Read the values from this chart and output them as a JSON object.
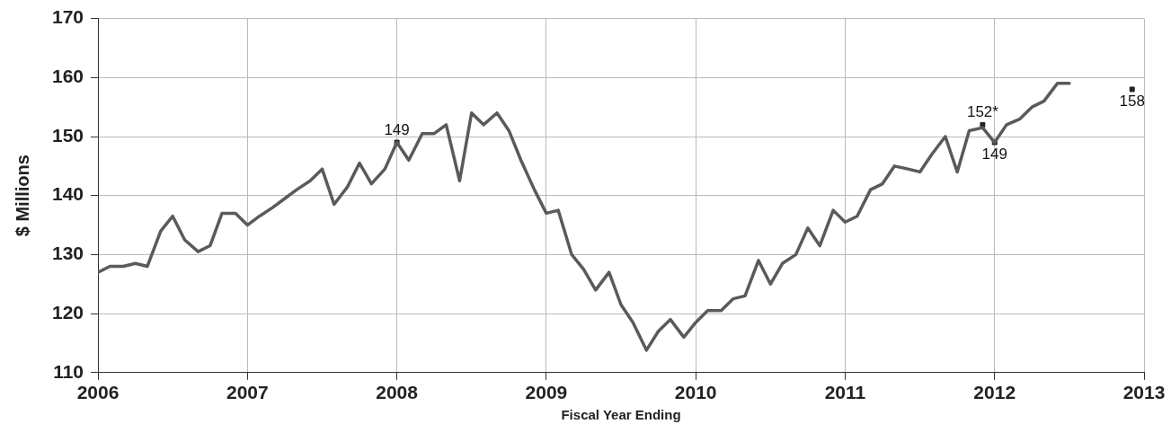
{
  "chart_data": {
    "type": "line",
    "xlabel": "Fiscal Year Ending",
    "ylabel": "$ Millions",
    "xlim": [
      2006,
      2013
    ],
    "xticks": [
      2006,
      2007,
      2008,
      2009,
      2010,
      2011,
      2012,
      2013
    ],
    "ylim": [
      110,
      170
    ],
    "yticks": [
      110,
      120,
      130,
      140,
      150,
      160,
      170
    ],
    "grid": true,
    "line_style": "solid",
    "series": [
      {
        "color": "#5a5a5a",
        "marker": "none",
        "x": [
          2006,
          2006.08,
          2006.17,
          2006.25,
          2006.33,
          2006.42,
          2006.5,
          2006.58,
          2006.67,
          2006.75,
          2006.83,
          2006.92,
          2007,
          2007.08,
          2007.17,
          2007.25,
          2007.33,
          2007.42,
          2007.5,
          2007.58,
          2007.67,
          2007.75,
          2007.83,
          2007.92,
          2008,
          2008.08,
          2008.17,
          2008.25,
          2008.33,
          2008.42,
          2008.5,
          2008.58,
          2008.67,
          2008.75,
          2008.83,
          2008.92,
          2009,
          2009.08,
          2009.17,
          2009.25,
          2009.33,
          2009.42,
          2009.5,
          2009.58,
          2009.67,
          2009.75,
          2009.83,
          2009.92,
          2010,
          2010.08,
          2010.17,
          2010.25,
          2010.33,
          2010.42,
          2010.5,
          2010.58,
          2010.67,
          2010.75,
          2010.83,
          2010.92,
          2011,
          2011.08,
          2011.17,
          2011.25,
          2011.33,
          2011.42,
          2011.5,
          2011.58,
          2011.67,
          2011.75,
          2011.83,
          2011.92,
          2012,
          2012.08,
          2012.17,
          2012.25,
          2012.33,
          2012.42,
          2012.5
        ],
        "values": [
          127,
          128,
          128,
          128.5,
          128,
          134,
          136.5,
          132.5,
          130.5,
          131.5,
          137,
          137,
          135,
          136.5,
          138,
          139.5,
          141,
          142.5,
          144.5,
          138.5,
          141.5,
          145.5,
          142,
          144.5,
          149,
          146,
          150.5,
          150.5,
          152,
          142.5,
          154,
          152,
          154,
          151,
          146,
          141,
          137,
          137.5,
          130,
          127.5,
          124,
          127,
          121.5,
          118.5,
          113.8,
          117,
          119,
          116,
          118.5,
          120.5,
          120.5,
          122.5,
          123,
          129,
          125,
          128.5,
          130,
          134.5,
          131.5,
          137.5,
          135.5,
          136.5,
          141,
          142,
          145,
          144.5,
          144,
          147,
          150,
          144,
          151,
          151.5,
          149,
          152,
          153,
          155,
          156,
          159,
          159
        ]
      },
      {
        "type": "scatter",
        "color": "#222222",
        "marker": "square",
        "x": [
          2008,
          2011.92,
          2012,
          2012.92
        ],
        "values": [
          149,
          152,
          149,
          158
        ],
        "value_labels": [
          "149",
          "152*",
          "149",
          "158"
        ]
      }
    ]
  }
}
